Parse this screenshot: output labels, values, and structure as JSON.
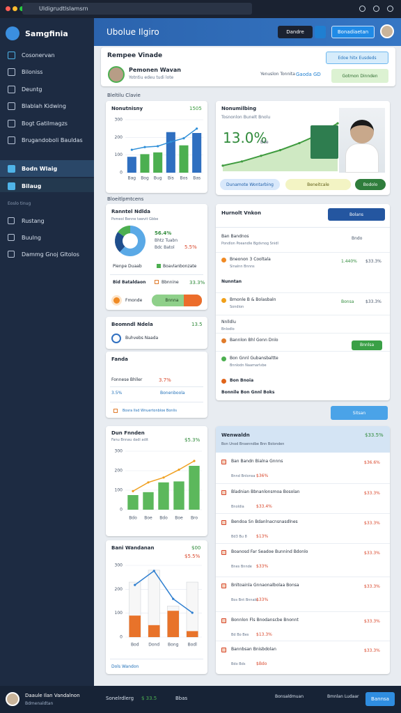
{
  "browser": {
    "url": "Uldigrudtlslamsrn"
  },
  "sidebar": {
    "brand": "Samgfinia",
    "items": [
      "Cosonervan",
      "Biloniss",
      "Deuntg",
      "Blablah Kidwing",
      "Bogt Gatilmagzs",
      "Brugandoboli Bauldas"
    ],
    "active": [
      "Bodn Wlaig",
      "Bilaug"
    ],
    "section": "Eoslo tinug",
    "items2": [
      "Rustang",
      "Buulng",
      "Dammg Gnoj Gltolos"
    ]
  },
  "header": {
    "title": "Ubolue Ilgiro",
    "btn1": "Dandre",
    "btn2": "Bonadiaetan"
  },
  "profile": {
    "title": "Rempee Vinade",
    "name": "Pemonen Wavan",
    "sub": "Yotntiu edeu tudi lote",
    "meta1": "Yenuslon Tonnita",
    "meta2": "Gaoda GD",
    "btn1": "Edoe hitx Eusdeds",
    "btn2": "Gotmon Dinnden"
  },
  "section1": "Bleltilu Clavie",
  "section2": "Bloeitlpmtcens",
  "chart1": {
    "title": "Nonutnisny",
    "value": "1505",
    "categories": [
      "Bag",
      "Bog",
      "Bug",
      "Bis",
      "Bos",
      "Bas"
    ],
    "values": [
      90,
      105,
      115,
      230,
      155,
      225
    ],
    "colors": [
      "#2f6fc0",
      "#4caf50",
      "#4caf50",
      "#2f6fc0",
      "#4caf50",
      "#2f6fc0"
    ],
    "trend": [
      130,
      145,
      150,
      175,
      195,
      250
    ],
    "ylim": [
      0,
      300
    ],
    "yticks": [
      0,
      100,
      200,
      300
    ]
  },
  "chart2": {
    "title": "Nonumilbing",
    "sub": "Tosnonlon Bunelt Bnolu",
    "value": "13.0%",
    "label": "Bde",
    "values": [
      8,
      14,
      22,
      30,
      40,
      52,
      68
    ],
    "ylim": [
      0,
      80
    ],
    "tags": [
      "Dunamote Wontarbing",
      "Beneitcale",
      "Bodolo"
    ]
  },
  "donut": {
    "title": "Ranntel Ndlda",
    "sub": "Psmeol Benne tawvit Gbbe",
    "pct": "56.4%",
    "l1": "Bhtz Tuabn",
    "l2": "Bdc Batol",
    "l2v": "5.5%",
    "values": [
      62,
      23,
      15
    ],
    "colors": [
      "#5aa9e6",
      "#1f4e8c",
      "#4caf50"
    ],
    "legend": [
      "Pienpe Duaab",
      "Boavlanbonzate"
    ],
    "row": "Bid Bataldaon",
    "rowsub": "Bbnnine",
    "rowv": "33.3%",
    "b1": "Fmonde",
    "b2": "Bnnna"
  },
  "card3": {
    "title": "Beomndl Ndela",
    "value": "13.5",
    "sub": "Buhvebs Naada"
  },
  "card4": {
    "title": "Fanda",
    "l1": "Fonnese Bhller",
    "v1": "3.7%",
    "l2": "3.5%",
    "v2": "Bonenboola",
    "foot": "Bosra Ilsd Wnuertonbloe Bonlis"
  },
  "list1": {
    "title": "Hurnolt Vnkon",
    "btn": "Bolans",
    "rows": [
      {
        "title": "Ban Bandnos",
        "sub": "Pondlon Poeandle Bgdvnog Snidl",
        "value": "Bndo"
      },
      {
        "title": "Bneonon 3 Cooltala",
        "sub": "Sinalnn Bnnns",
        "value": "1.440%",
        "value2": "$33.3%"
      },
      {
        "title": "Nunntan"
      },
      {
        "title": "Bmonle B & Bolasbaln",
        "sub": "Sondion",
        "value": "Bonsa",
        "value2": "$33.3%"
      },
      {
        "title": "Nnlldlu",
        "sub": "Bnlodlo"
      },
      {
        "title": "Bannlon Bhl Gonn Dnlo",
        "value": "Bnnlsa"
      },
      {
        "title": "Bon Gnnl Gubansbaltte",
        "sub": "Bnnlodn Naamarlvbe"
      },
      {
        "title": "Bon Bnoia"
      },
      {
        "title": "Bonnile Bon Gnnl Boks"
      }
    ]
  },
  "button": "Sitsan",
  "chart3": {
    "title": "Dun Fnnden",
    "value": "$5.3%",
    "sub": "Fanu Bnnau dadi adit",
    "categories": [
      "Bdo",
      "Boe",
      "Bdo",
      "Boe",
      "Bro"
    ],
    "values": [
      75,
      90,
      140,
      145,
      225
    ],
    "trend": [
      95,
      140,
      165,
      205,
      250
    ],
    "ylim": [
      0,
      300
    ],
    "yticks": [
      0,
      100,
      200,
      300
    ]
  },
  "chart4": {
    "title": "Bani Wandanan",
    "value": "$00",
    "value2": "$5.5%",
    "categories": [
      "Bod",
      "Dond",
      "Bong",
      "Bodl"
    ],
    "orange": [
      90,
      50,
      110,
      25
    ],
    "white": [
      230,
      280,
      130,
      230
    ],
    "trend": [
      218,
      277,
      160,
      102
    ],
    "ylim": [
      0,
      300
    ],
    "yticks": [
      0,
      100,
      200,
      300
    ],
    "foot": "Dols Wandon"
  },
  "list2": {
    "title": "Wenwaldn",
    "value": "$33.5%",
    "sub": "Bon Unod Bnsenndbe Bnn Bolonden",
    "rows": [
      {
        "title": "Ban Bandn Bialna Gnnns",
        "sub": "Bnnd Bnlonsa",
        "tag": "$36%",
        "value": "$36.6%"
      },
      {
        "title": "Bladnian Bbnanlonsmoa Bosolan",
        "sub": "Bnoldia",
        "tag": "$33.4%",
        "value": "$33.3%"
      },
      {
        "title": "Bendoa Sn Bdanlnacnsnasdlnes",
        "sub": "Bd3 Bu 8",
        "tag": "$13%",
        "value": "$33.3%"
      },
      {
        "title": "Boanosd Far Seadoe Bunnind Bdonlo",
        "sub": "Bnes Bnnde",
        "tag": "$33%",
        "value": "$33.3%"
      },
      {
        "title": "Bnltoainla Gnnaonalbolaa Bonsa",
        "sub": "Bos Bnt Bnnals",
        "tag": "$33%",
        "value": "$33.3%"
      },
      {
        "title": "Bonnlon Fls Bnodanscbe Bnonnt",
        "sub": "Bd Bo Bes",
        "tag": "$13.3%",
        "value": "$33.3%"
      },
      {
        "title": "Bannbsan Bnisbdolan",
        "sub": "Bdo Bds",
        "tag": "$Bdo",
        "value": "$33.3%"
      }
    ]
  },
  "footer": {
    "name": "Daaule Ilan Vandalnon",
    "role": "Bdmenaldtan",
    "l1": "Sonelrdlerg",
    "v1": "$ 33.5",
    "l2": "Bbas",
    "r1": "Bonsaldmuan",
    "r2": "Bmnlan Ludaar",
    "btn": "Bannsa"
  }
}
